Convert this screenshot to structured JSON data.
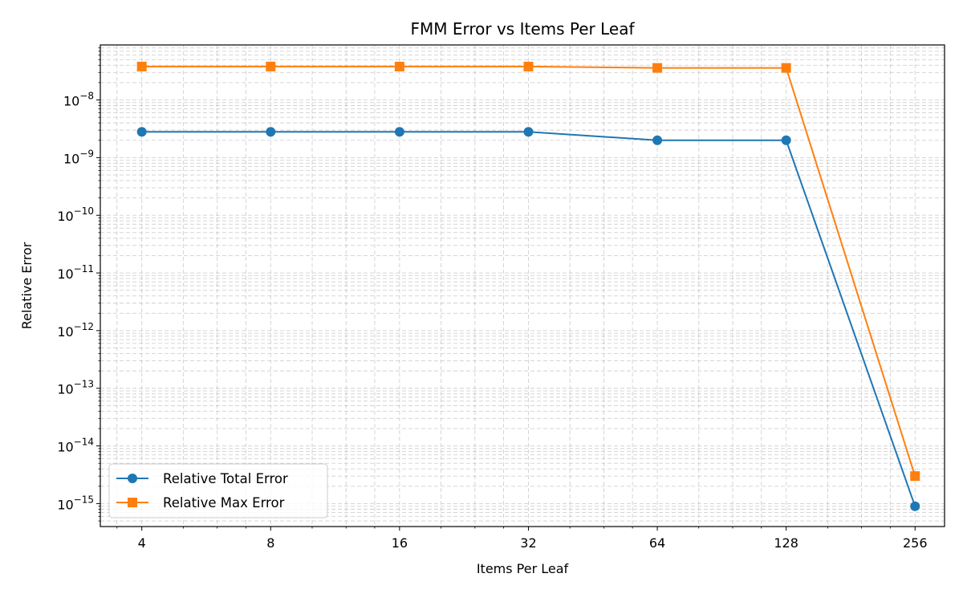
{
  "chart_data": {
    "type": "line",
    "title": "FMM Error vs Items Per Leaf",
    "xlabel": "Items Per Leaf",
    "ylabel": "Relative Error",
    "x_scale": "log2",
    "y_scale": "log10",
    "x": [
      4,
      8,
      16,
      32,
      64,
      128,
      256
    ],
    "x_tick_labels": [
      "4",
      "8",
      "16",
      "32",
      "64",
      "128",
      "256"
    ],
    "xlim": [
      3.2,
      300
    ],
    "ylim": [
      4e-16,
      9e-08
    ],
    "y_ticks": [
      {
        "exp": -15,
        "label_base": "10",
        "label_exp": "−15"
      },
      {
        "exp": -14,
        "label_base": "10",
        "label_exp": "−14"
      },
      {
        "exp": -13,
        "label_base": "10",
        "label_exp": "−13"
      },
      {
        "exp": -12,
        "label_base": "10",
        "label_exp": "−12"
      },
      {
        "exp": -11,
        "label_base": "10",
        "label_exp": "−11"
      },
      {
        "exp": -10,
        "label_base": "10",
        "label_exp": "−10"
      },
      {
        "exp": -9,
        "label_base": "10",
        "label_exp": "−9"
      },
      {
        "exp": -8,
        "label_base": "10",
        "label_exp": "−8"
      }
    ],
    "grid": true,
    "legend_position": "lower-left",
    "series": [
      {
        "name": "Relative Total Error",
        "color": "#1f77b4",
        "marker": "circle",
        "values": [
          2.8e-09,
          2.8e-09,
          2.8e-09,
          2.8e-09,
          2e-09,
          2e-09,
          9e-16
        ]
      },
      {
        "name": "Relative Max Error",
        "color": "#ff7f0e",
        "marker": "square",
        "values": [
          3.8e-08,
          3.8e-08,
          3.8e-08,
          3.8e-08,
          3.6e-08,
          3.6e-08,
          3e-15
        ]
      }
    ]
  }
}
